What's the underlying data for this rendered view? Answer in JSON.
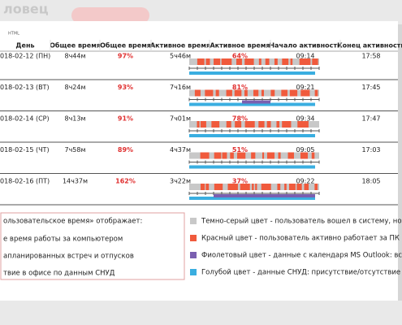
{
  "header": {
    "brand": "ловец",
    "label": "HTML"
  },
  "table": {
    "columns": [
      "День",
      "Общее время",
      "Общее время",
      "Активное время",
      "Активное время",
      "Начало активности",
      "Конец активности"
    ],
    "rows": [
      [
        "018-02-12 (ПН)",
        "8ч44м",
        "97%",
        "5ч46м",
        "64%",
        "09:14",
        "17:58"
      ],
      [
        "018-02-13 (ВТ)",
        "8ч24м",
        "93%",
        "7ч16м",
        "81%",
        "09:21",
        "17:45"
      ],
      [
        "018-02-14 (СР)",
        "8ч13м",
        "91%",
        "7ч01м",
        "78%",
        "09:34",
        "17:47"
      ],
      [
        "018-02-15 (ЧТ)",
        "7ч58м",
        "89%",
        "4ч37м",
        "51%",
        "09:05",
        "17:03"
      ],
      [
        "018-02-16 (ПТ)",
        "14ч37м",
        "162%",
        "3ч22м",
        "37%",
        "09:22",
        "18:05"
      ]
    ]
  },
  "legend": {
    "title": "ользовательское время» отображает:",
    "items": [
      "е время работы за компьютером",
      "апланированных встреч и отпусков",
      "твие в офисе по данным СНУД"
    ]
  },
  "colors": {
    "items": [
      "Темно-серый цвет - пользователь вошел в систему, но н",
      "Красный цвет - пользователь активно работает за ПК",
      "Фиолетовый цвет - данные с календаря MS Outlook: вст",
      "Голубой цвет - данные СНУД: присутствие/отсутствие в"
    ]
  }
}
